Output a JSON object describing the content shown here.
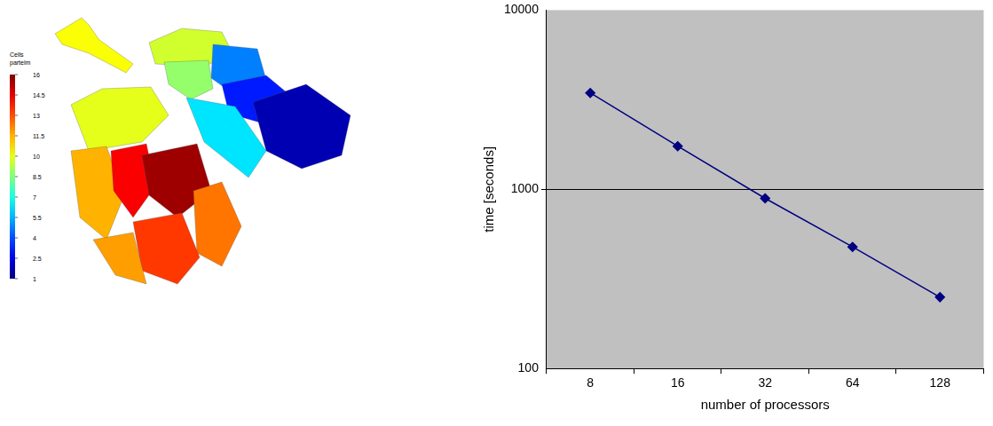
{
  "chart_data": {
    "type": "line",
    "categories": [
      "8",
      "16",
      "32",
      "64",
      "128"
    ],
    "values": [
      3450,
      1740,
      890,
      477,
      250
    ],
    "color": "#000080",
    "marker": "diamond",
    "x_label": "number of processors",
    "y_label": "time [seconds]",
    "log": "y",
    "ylim": [
      100,
      10000
    ],
    "yticks": [
      100,
      1000,
      10000
    ],
    "grid": true,
    "legend": null
  },
  "rendering": {
    "colorbar": {
      "title": "Cells partelm",
      "range": [
        1,
        16
      ],
      "ticks": [
        16,
        14.5,
        13,
        11.5,
        10,
        8.5,
        7,
        5.5,
        4,
        2.5,
        1
      ]
    }
  }
}
